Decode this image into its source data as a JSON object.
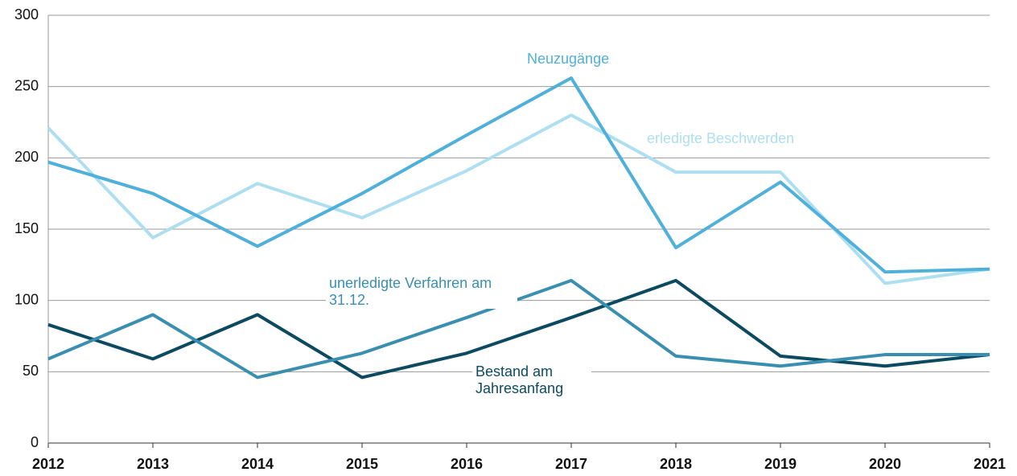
{
  "chart_data": {
    "type": "line",
    "x": [
      2012,
      2013,
      2014,
      2015,
      2016,
      2017,
      2018,
      2019,
      2020,
      2021
    ],
    "xlim": [
      2012,
      2021
    ],
    "xticks": [
      2012,
      2013,
      2014,
      2015,
      2016,
      2017,
      2018,
      2019,
      2020,
      2021
    ],
    "ylim": [
      0,
      300
    ],
    "yticks": [
      0,
      50,
      100,
      150,
      200,
      250,
      300
    ],
    "grid": true,
    "series": [
      {
        "name": "Neuzugänge",
        "color": "#4fb0d9",
        "values": [
          197,
          175,
          138,
          175,
          216,
          256,
          137,
          183,
          120,
          122
        ]
      },
      {
        "name": "erledigte Beschwerden",
        "color": "#aedff0",
        "values": [
          221,
          144,
          182,
          158,
          191,
          230,
          190,
          190,
          112,
          122
        ]
      },
      {
        "name": "unerledigte Verfahren am 31.12.",
        "color": "#3a8fb0",
        "values": [
          59,
          90,
          46,
          63,
          88,
          114,
          61,
          54,
          62,
          62
        ]
      },
      {
        "name": "Bestand am Jahresanfang",
        "color": "#0b4a61",
        "values": [
          83,
          59,
          90,
          46,
          63,
          88,
          114,
          61,
          54,
          62
        ]
      }
    ]
  }
}
